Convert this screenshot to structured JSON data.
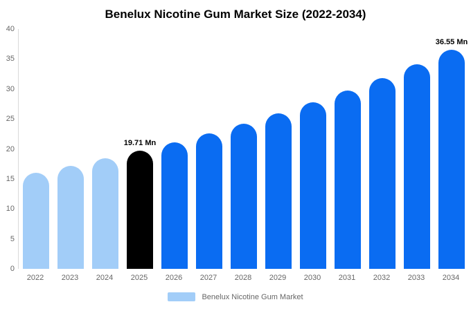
{
  "chart_data": {
    "type": "bar",
    "title": "Benelux Nicotine Gum Market Size (2022-2034)",
    "xlabel": "",
    "ylabel": "",
    "categories": [
      "2022",
      "2023",
      "2024",
      "2025",
      "2026",
      "2027",
      "2028",
      "2029",
      "2030",
      "2031",
      "2032",
      "2033",
      "2034"
    ],
    "values": [
      16.04,
      17.18,
      18.4,
      19.71,
      21.11,
      22.61,
      24.21,
      25.93,
      27.77,
      29.74,
      31.85,
      34.12,
      36.55
    ],
    "value_unit": "Mn",
    "ylim": [
      0,
      40
    ],
    "yticks": [
      0,
      5,
      10,
      15,
      20,
      25,
      30,
      35,
      40
    ],
    "grid": false,
    "legend_position": "bottom",
    "bar_roles": [
      "historical",
      "historical",
      "historical",
      "highlight",
      "forecast",
      "forecast",
      "forecast",
      "forecast",
      "forecast",
      "forecast",
      "forecast",
      "forecast",
      "forecast"
    ],
    "data_labels": {
      "2025": "19.71 Mn",
      "2034": "36.55 Mn"
    }
  },
  "legend": {
    "label": "Benelux Nicotine Gum Market"
  },
  "colors": {
    "historical_bar": "#A2CDF8",
    "highlight_bar": "#000000",
    "forecast_bar": "#0A6CF2",
    "legend_swatch": "#A2CDF8",
    "axis_line": "#D9D9D9",
    "tick_text": "#666666",
    "title_text": "#000000",
    "data_label_text": "#000000",
    "background": "#FFFFFF"
  }
}
